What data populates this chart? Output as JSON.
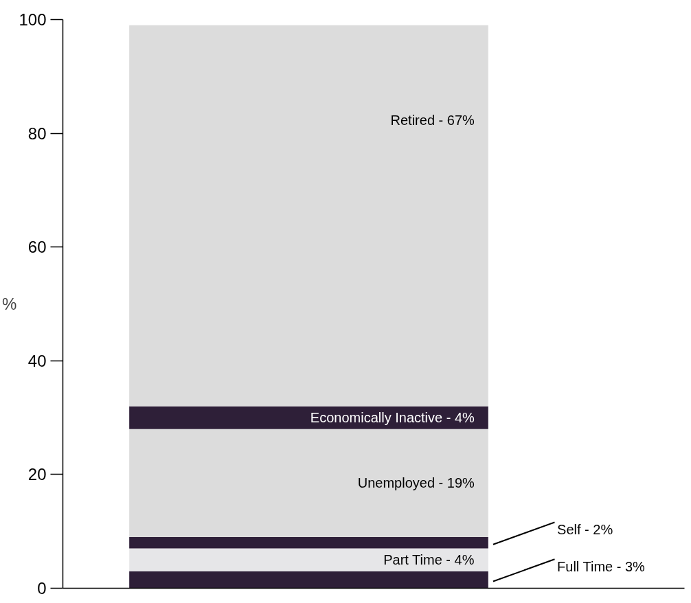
{
  "chart_data": {
    "type": "bar",
    "stacked": true,
    "categories": [
      null
    ],
    "ylabel": "%",
    "series": [
      {
        "name": "Full Time -",
        "color": "#2e1f38",
        "values": [
          3
        ],
        "value_labels": [
          "3%"
        ]
      },
      {
        "name": "Part Time -",
        "color": "#e6e6e8",
        "values": [
          4
        ],
        "value_labels": [
          "4%"
        ]
      },
      {
        "name": "Self -",
        "color": "#2e1f38",
        "values": [
          2
        ],
        "value_labels": [
          "2%"
        ]
      },
      {
        "name": "Unemployed -",
        "color": "#dcdcdc",
        "values": [
          19
        ],
        "value_labels": [
          "19%"
        ]
      },
      {
        "name": "Economically Inactive -",
        "color": "#2e1f38",
        "values": [
          4
        ],
        "value_labels": [
          "4%"
        ]
      },
      {
        "name": "Retired -",
        "color": "#dcdcdc",
        "values": [
          67
        ],
        "value_labels": [
          "67%"
        ]
      }
    ],
    "ylim": [
      0,
      100
    ],
    "yticks": [
      0,
      20,
      40,
      60,
      80,
      100
    ],
    "grid": false
  }
}
